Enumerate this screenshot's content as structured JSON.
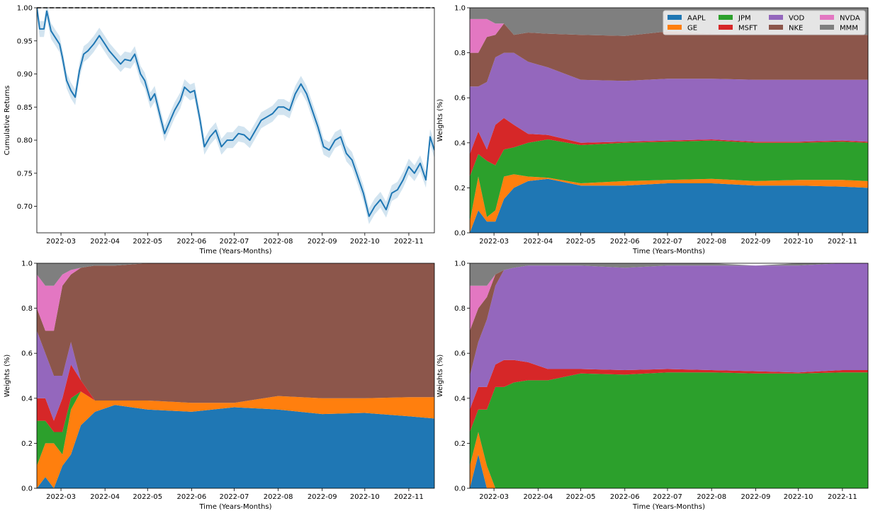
{
  "figure": {
    "background": "#ffffff"
  },
  "palette": {
    "AAPL": "#1f77b4",
    "GE": "#ff7f0e",
    "JPM": "#2ca02c",
    "MSFT": "#d62728",
    "VOD": "#9467bd",
    "NKE": "#8c564b",
    "NVDA": "#e377c2",
    "MMM": "#7f7f7f"
  },
  "legend": {
    "placement": "top-right of chart 2",
    "items": [
      "AAPL",
      "GE",
      "JPM",
      "MSFT",
      "VOD",
      "NKE",
      "NVDA",
      "MMM"
    ]
  },
  "chart_data": [
    {
      "type": "line",
      "xlabel": "Time (Years-Months)",
      "ylabel": "Cumulative Returns",
      "x_range": [
        "2022-02-12",
        "2022-11-19"
      ],
      "ylim": [
        0.66,
        1.0
      ],
      "x_ticks": [
        "2022-03",
        "2022-04",
        "2022-05",
        "2022-06",
        "2022-07",
        "2022-08",
        "2022-09",
        "2022-10",
        "2022-11"
      ],
      "y_ticks": [
        "0.70",
        "0.75",
        "0.80",
        "0.85",
        "0.90",
        "0.95",
        "1.00"
      ],
      "reference_line": 1.0,
      "series": [
        {
          "line_color": "#1f77b4",
          "band_color": "#1f77b4",
          "band_halfwidth": 0.012,
          "x": [
            "2022-02-12",
            "2022-02-14",
            "2022-02-17",
            "2022-02-19",
            "2022-02-22",
            "2022-02-25",
            "2022-02-28",
            "2022-03-02",
            "2022-03-05",
            "2022-03-08",
            "2022-03-11",
            "2022-03-14",
            "2022-03-17",
            "2022-03-20",
            "2022-03-24",
            "2022-03-28",
            "2022-04-01",
            "2022-04-04",
            "2022-04-08",
            "2022-04-12",
            "2022-04-15",
            "2022-04-19",
            "2022-04-22",
            "2022-04-26",
            "2022-04-29",
            "2022-05-03",
            "2022-05-06",
            "2022-05-10",
            "2022-05-13",
            "2022-05-17",
            "2022-05-20",
            "2022-05-24",
            "2022-05-27",
            "2022-05-31",
            "2022-06-03",
            "2022-06-07",
            "2022-06-10",
            "2022-06-14",
            "2022-06-18",
            "2022-06-22",
            "2022-06-26",
            "2022-06-30",
            "2022-07-04",
            "2022-07-08",
            "2022-07-12",
            "2022-07-16",
            "2022-07-20",
            "2022-07-24",
            "2022-07-28",
            "2022-08-01",
            "2022-08-05",
            "2022-08-09",
            "2022-08-13",
            "2022-08-17",
            "2022-08-21",
            "2022-08-25",
            "2022-08-29",
            "2022-09-02",
            "2022-09-06",
            "2022-09-10",
            "2022-09-14",
            "2022-09-18",
            "2022-09-22",
            "2022-09-26",
            "2022-09-30",
            "2022-10-04",
            "2022-10-08",
            "2022-10-12",
            "2022-10-16",
            "2022-10-20",
            "2022-10-24",
            "2022-10-28",
            "2022-11-01",
            "2022-11-05",
            "2022-11-09",
            "2022-11-13",
            "2022-11-16",
            "2022-11-19"
          ],
          "values": [
            1.0,
            0.968,
            0.968,
            0.995,
            0.965,
            0.955,
            0.945,
            0.925,
            0.89,
            0.875,
            0.865,
            0.905,
            0.93,
            0.935,
            0.945,
            0.958,
            0.945,
            0.935,
            0.925,
            0.915,
            0.922,
            0.92,
            0.93,
            0.9,
            0.89,
            0.86,
            0.87,
            0.835,
            0.81,
            0.83,
            0.845,
            0.86,
            0.88,
            0.872,
            0.875,
            0.83,
            0.79,
            0.805,
            0.815,
            0.79,
            0.8,
            0.8,
            0.81,
            0.808,
            0.8,
            0.815,
            0.83,
            0.835,
            0.84,
            0.85,
            0.85,
            0.845,
            0.87,
            0.885,
            0.87,
            0.845,
            0.82,
            0.79,
            0.785,
            0.8,
            0.805,
            0.78,
            0.77,
            0.745,
            0.72,
            0.685,
            0.7,
            0.71,
            0.695,
            0.72,
            0.725,
            0.74,
            0.76,
            0.75,
            0.765,
            0.74,
            0.805,
            0.785
          ]
        }
      ]
    },
    {
      "type": "area",
      "xlabel": "Time (Years-Months)",
      "ylabel": "Weights (%)",
      "x_range": [
        "2022-02-12",
        "2022-11-19"
      ],
      "ylim": [
        0.0,
        1.0
      ],
      "x_ticks": [
        "2022-03",
        "2022-04",
        "2022-05",
        "2022-06",
        "2022-07",
        "2022-08",
        "2022-09",
        "2022-10",
        "2022-11"
      ],
      "y_ticks": [
        "0.0",
        "0.2",
        "0.4",
        "0.6",
        "0.8",
        "1.0"
      ],
      "x": [
        "2022-02-12",
        "2022-02-18",
        "2022-02-24",
        "2022-03-02",
        "2022-03-08",
        "2022-03-15",
        "2022-03-25",
        "2022-04-08",
        "2022-05-01",
        "2022-06-01",
        "2022-07-01",
        "2022-08-01",
        "2022-09-01",
        "2022-10-01",
        "2022-11-01",
        "2022-11-19"
      ],
      "series": [
        {
          "name": "AAPL",
          "values": [
            0.0,
            0.1,
            0.05,
            0.05,
            0.15,
            0.2,
            0.23,
            0.24,
            0.21,
            0.21,
            0.22,
            0.22,
            0.21,
            0.21,
            0.205,
            0.2
          ]
        },
        {
          "name": "GE",
          "values": [
            0.05,
            0.15,
            0.02,
            0.05,
            0.1,
            0.06,
            0.02,
            0.005,
            0.01,
            0.02,
            0.015,
            0.02,
            0.02,
            0.025,
            0.03,
            0.03
          ]
        },
        {
          "name": "JPM",
          "values": [
            0.2,
            0.1,
            0.25,
            0.2,
            0.12,
            0.12,
            0.15,
            0.17,
            0.17,
            0.17,
            0.17,
            0.17,
            0.17,
            0.165,
            0.17,
            0.17
          ]
        },
        {
          "name": "MSFT",
          "values": [
            0.1,
            0.1,
            0.05,
            0.18,
            0.14,
            0.1,
            0.04,
            0.02,
            0.01,
            0.005,
            0.005,
            0.005,
            0.005,
            0.005,
            0.005,
            0.005
          ]
        },
        {
          "name": "VOD",
          "values": [
            0.3,
            0.2,
            0.3,
            0.3,
            0.29,
            0.32,
            0.32,
            0.3,
            0.28,
            0.27,
            0.275,
            0.27,
            0.275,
            0.275,
            0.27,
            0.275
          ]
        },
        {
          "name": "NKE",
          "values": [
            0.15,
            0.15,
            0.2,
            0.1,
            0.13,
            0.08,
            0.13,
            0.15,
            0.2,
            0.2,
            0.21,
            0.2,
            0.2,
            0.2,
            0.2,
            0.2
          ]
        },
        {
          "name": "NVDA",
          "values": [
            0.15,
            0.15,
            0.08,
            0.05,
            0.0,
            0.0,
            0.0,
            0.0,
            0.0,
            0.0,
            0.0,
            0.0,
            0.0,
            0.0,
            0.0,
            0.0
          ]
        },
        {
          "name": "MMM",
          "values": [
            0.05,
            0.05,
            0.05,
            0.07,
            0.07,
            0.12,
            0.11,
            0.115,
            0.12,
            0.125,
            0.105,
            0.115,
            0.12,
            0.12,
            0.12,
            0.12
          ]
        }
      ]
    },
    {
      "type": "area",
      "xlabel": "Time (Years-Months)",
      "ylabel": "Weights (%)",
      "x_range": [
        "2022-02-12",
        "2022-11-19"
      ],
      "ylim": [
        0.0,
        1.0
      ],
      "x_ticks": [
        "2022-03",
        "2022-04",
        "2022-05",
        "2022-06",
        "2022-07",
        "2022-08",
        "2022-09",
        "2022-10",
        "2022-11"
      ],
      "y_ticks": [
        "0.0",
        "0.2",
        "0.4",
        "0.6",
        "0.8",
        "1.0"
      ],
      "x": [
        "2022-02-12",
        "2022-02-18",
        "2022-02-24",
        "2022-03-02",
        "2022-03-08",
        "2022-03-15",
        "2022-03-25",
        "2022-04-08",
        "2022-05-01",
        "2022-06-01",
        "2022-07-01",
        "2022-08-01",
        "2022-09-01",
        "2022-10-01",
        "2022-11-01",
        "2022-11-19"
      ],
      "series": [
        {
          "name": "AAPL",
          "values": [
            0.0,
            0.05,
            0.0,
            0.1,
            0.15,
            0.28,
            0.34,
            0.37,
            0.35,
            0.34,
            0.36,
            0.35,
            0.33,
            0.335,
            0.32,
            0.31
          ]
        },
        {
          "name": "GE",
          "values": [
            0.1,
            0.15,
            0.2,
            0.05,
            0.2,
            0.15,
            0.05,
            0.02,
            0.04,
            0.04,
            0.02,
            0.06,
            0.07,
            0.065,
            0.085,
            0.095
          ]
        },
        {
          "name": "JPM",
          "values": [
            0.2,
            0.1,
            0.05,
            0.1,
            0.05,
            0.0,
            0.0,
            0.0,
            0.0,
            0.0,
            0.0,
            0.0,
            0.0,
            0.0,
            0.0,
            0.0
          ]
        },
        {
          "name": "MSFT",
          "values": [
            0.1,
            0.1,
            0.05,
            0.15,
            0.15,
            0.05,
            0.0,
            0.0,
            0.0,
            0.0,
            0.0,
            0.0,
            0.0,
            0.0,
            0.0,
            0.0
          ]
        },
        {
          "name": "VOD",
          "values": [
            0.3,
            0.2,
            0.2,
            0.1,
            0.1,
            0.0,
            0.0,
            0.0,
            0.0,
            0.0,
            0.0,
            0.0,
            0.0,
            0.0,
            0.0,
            0.0
          ]
        },
        {
          "name": "NKE",
          "values": [
            0.1,
            0.1,
            0.2,
            0.4,
            0.3,
            0.5,
            0.6,
            0.6,
            0.61,
            0.62,
            0.62,
            0.59,
            0.6,
            0.6,
            0.595,
            0.595
          ]
        },
        {
          "name": "NVDA",
          "values": [
            0.15,
            0.2,
            0.2,
            0.05,
            0.02,
            0.0,
            0.0,
            0.0,
            0.0,
            0.0,
            0.0,
            0.0,
            0.0,
            0.0,
            0.0,
            0.0
          ]
        },
        {
          "name": "MMM",
          "values": [
            0.05,
            0.1,
            0.1,
            0.05,
            0.03,
            0.02,
            0.01,
            0.01,
            0.0,
            0.0,
            0.0,
            0.0,
            0.0,
            0.0,
            0.0,
            0.0
          ]
        }
      ]
    },
    {
      "type": "area",
      "xlabel": "Time (Years-Months)",
      "ylabel": "Weights (%)",
      "x_range": [
        "2022-02-12",
        "2022-11-19"
      ],
      "ylim": [
        0.0,
        1.0
      ],
      "x_ticks": [
        "2022-03",
        "2022-04",
        "2022-05",
        "2022-06",
        "2022-07",
        "2022-08",
        "2022-09",
        "2022-10",
        "2022-11"
      ],
      "y_ticks": [
        "0.0",
        "0.2",
        "0.4",
        "0.6",
        "0.8",
        "1.0"
      ],
      "x": [
        "2022-02-12",
        "2022-02-18",
        "2022-02-24",
        "2022-03-02",
        "2022-03-08",
        "2022-03-15",
        "2022-03-25",
        "2022-04-08",
        "2022-05-01",
        "2022-06-01",
        "2022-07-01",
        "2022-08-01",
        "2022-09-01",
        "2022-10-01",
        "2022-11-01",
        "2022-11-19"
      ],
      "series": [
        {
          "name": "AAPL",
          "values": [
            0.0,
            0.15,
            0.0,
            0.0,
            0.0,
            0.0,
            0.0,
            0.0,
            0.0,
            0.0,
            0.0,
            0.0,
            0.0,
            0.0,
            0.0,
            0.0
          ]
        },
        {
          "name": "GE",
          "values": [
            0.1,
            0.1,
            0.1,
            0.0,
            0.0,
            0.0,
            0.0,
            0.0,
            0.0,
            0.0,
            0.0,
            0.0,
            0.0,
            0.0,
            0.0,
            0.0
          ]
        },
        {
          "name": "JPM",
          "values": [
            0.15,
            0.1,
            0.25,
            0.45,
            0.45,
            0.47,
            0.48,
            0.48,
            0.51,
            0.505,
            0.515,
            0.515,
            0.51,
            0.51,
            0.515,
            0.515
          ]
        },
        {
          "name": "MSFT",
          "values": [
            0.1,
            0.1,
            0.1,
            0.1,
            0.12,
            0.1,
            0.08,
            0.05,
            0.02,
            0.02,
            0.015,
            0.01,
            0.01,
            0.005,
            0.01,
            0.01
          ]
        },
        {
          "name": "VOD",
          "values": [
            0.15,
            0.2,
            0.3,
            0.35,
            0.4,
            0.41,
            0.43,
            0.46,
            0.46,
            0.455,
            0.46,
            0.465,
            0.47,
            0.475,
            0.475,
            0.475
          ]
        },
        {
          "name": "NKE",
          "values": [
            0.2,
            0.15,
            0.1,
            0.05,
            0.0,
            0.0,
            0.0,
            0.0,
            0.0,
            0.0,
            0.0,
            0.0,
            0.0,
            0.0,
            0.0,
            0.0
          ]
        },
        {
          "name": "NVDA",
          "values": [
            0.2,
            0.1,
            0.05,
            0.0,
            0.0,
            0.0,
            0.0,
            0.0,
            0.0,
            0.0,
            0.0,
            0.0,
            0.0,
            0.0,
            0.0,
            0.0
          ]
        },
        {
          "name": "MMM",
          "values": [
            0.1,
            0.1,
            0.1,
            0.05,
            0.03,
            0.02,
            0.01,
            0.01,
            0.01,
            0.02,
            0.01,
            0.01,
            0.0,
            0.01,
            0.0,
            0.0
          ]
        }
      ]
    }
  ]
}
